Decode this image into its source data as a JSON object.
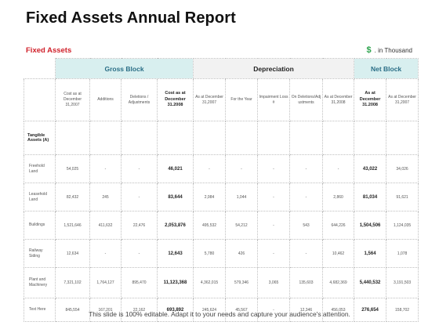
{
  "title": "Fixed Assets Annual Report",
  "subtitle": "Fixed Assets",
  "unit": {
    "symbol": "$",
    "label": ". in Thousand"
  },
  "groups": {
    "gross": "Gross Block",
    "depreciation": "Depreciation",
    "net": "Net Block"
  },
  "columns": [
    "Cost as at December 31,2007",
    "Additions",
    "Deletions / Adjustments",
    "Cost as at December 31.2008",
    "As at December 31,2007",
    "For the Year",
    "Impairment Loss #",
    "On Deletions/Adj ustments",
    "As at December 31,2008",
    "As at December 31.2008",
    "As at December 31,2007"
  ],
  "section_label": "Tangible Assets (A)",
  "rows": [
    {
      "label": "Freehold Land",
      "values": [
        "54,025",
        "-",
        "-",
        "46,021",
        "-",
        "-",
        "-",
        "-",
        "-",
        "43,022",
        "34,026"
      ]
    },
    {
      "label": "Leasehold Land",
      "values": [
        "82,432",
        "245",
        "-",
        "83,644",
        "2,984",
        "1,044",
        "-",
        "-",
        "2,860",
        "81,034",
        "91,621"
      ]
    },
    {
      "label": "Buildings",
      "values": [
        "1,521,646",
        "411,632",
        "22,476",
        "2,053,876",
        "495,532",
        "54,212",
        "-",
        "543",
        "644,226",
        "1,504,506",
        "1,124,035"
      ]
    },
    {
      "label": "Railway Siding",
      "values": [
        "12,634",
        "-",
        "-",
        "12,643",
        "5,780",
        "426",
        "-",
        "-",
        "10,462",
        "1,564",
        "1,078"
      ]
    },
    {
      "label": "Plant and Machinery",
      "values": [
        "7,321,102",
        "1,764,127",
        "895,470",
        "11,123,368",
        "4,362,015",
        "579,346",
        "3,065",
        "135,603",
        "4,682,369",
        "5,440,532",
        "3,191,503"
      ]
    },
    {
      "label": "Text Here",
      "values": [
        "845,554",
        "167,201",
        "22,162",
        "693,892",
        "245,624",
        "45,567",
        "-",
        "12,346",
        "456,053",
        "276,654",
        "158,702"
      ]
    }
  ],
  "footer": "This slide is 100% editable. Adapt it to your needs and capture your audience's attention."
}
